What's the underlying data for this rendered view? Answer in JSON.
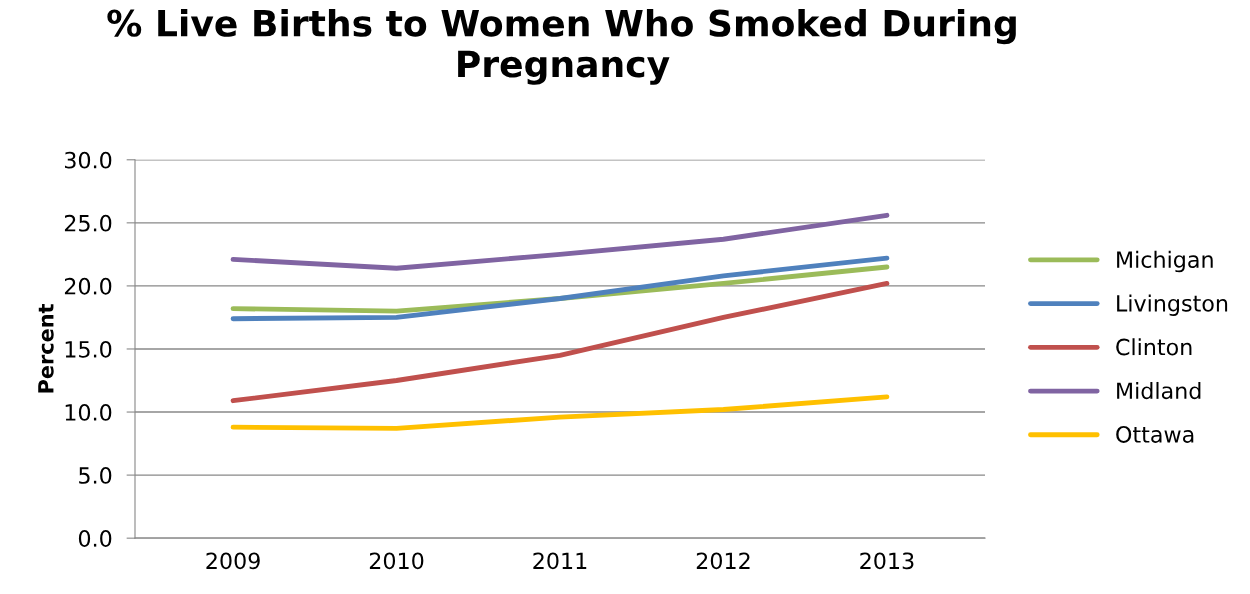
{
  "chart_data": {
    "type": "line",
    "title": "% Live Births to Women Who Smoked During Pregnancy",
    "ylabel": "Percent",
    "categories": [
      "2009",
      "2010",
      "2011",
      "2012",
      "2013"
    ],
    "series": [
      {
        "name": "Michigan",
        "color": "#9bbb59",
        "values": [
          18.2,
          18.0,
          19.0,
          20.2,
          21.5
        ]
      },
      {
        "name": "Livingston",
        "color": "#4f81bd",
        "values": [
          17.4,
          17.5,
          19.0,
          20.8,
          22.2
        ]
      },
      {
        "name": "Clinton",
        "color": "#c0504d",
        "values": [
          10.9,
          12.5,
          14.5,
          17.5,
          20.2
        ]
      },
      {
        "name": "Midland",
        "color": "#8064a2",
        "values": [
          22.1,
          21.4,
          22.5,
          23.7,
          25.6
        ]
      },
      {
        "name": "Ottawa",
        "color": "#ffc000",
        "values": [
          8.8,
          8.7,
          9.6,
          10.2,
          11.2
        ]
      }
    ],
    "ylim": [
      0,
      30
    ],
    "yticks": [
      {
        "value": 0,
        "label": "0.0"
      },
      {
        "value": 5,
        "label": "5.0"
      },
      {
        "value": 10,
        "label": "10.0"
      },
      {
        "value": 15,
        "label": "15.0"
      },
      {
        "value": 20,
        "label": "20.0"
      },
      {
        "value": 25,
        "label": "25.0"
      },
      {
        "value": 30,
        "label": "30.0"
      }
    ],
    "grid": "y",
    "legend": "right",
    "marker": "none",
    "line_style": "solid"
  }
}
